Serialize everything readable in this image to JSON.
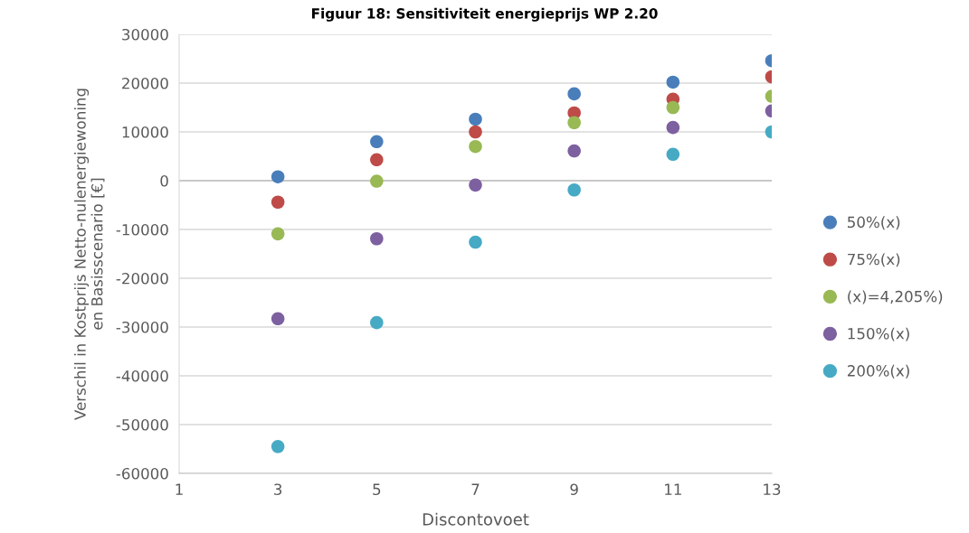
{
  "chart_data": {
    "type": "scatter",
    "title": "Figuur 18: Sensitiviteit energieprijs WP 2.20",
    "xlabel": "Discontovoet",
    "ylabel": "Verschil in Kostprijs Netto-nulenergiewoning\nen Basisscenario [€]",
    "x": [
      3,
      5,
      7,
      9,
      11,
      13
    ],
    "series": [
      {
        "name": "50%(x)",
        "color": "#4a7ebb",
        "values": [
          800,
          8000,
          12600,
          17800,
          20200,
          24600
        ]
      },
      {
        "name": "75%(x)",
        "color": "#be4b48",
        "values": [
          -4400,
          4300,
          10000,
          13900,
          16700,
          21300
        ]
      },
      {
        "name": "(x)=4,205%)",
        "color": "#98b954",
        "values": [
          -10900,
          -100,
          7000,
          11900,
          15000,
          17300
        ]
      },
      {
        "name": "150%(x)",
        "color": "#7d60a0",
        "values": [
          -28300,
          -11900,
          -900,
          6100,
          10900,
          14300
        ]
      },
      {
        "name": "200%(x)",
        "color": "#46aac5",
        "values": [
          -54500,
          -29100,
          -12600,
          -1900,
          5400,
          10000
        ]
      }
    ],
    "xlim": [
      1,
      13
    ],
    "xticks": [
      1,
      3,
      5,
      7,
      9,
      11,
      13
    ],
    "ylim": [
      -60000,
      30000
    ],
    "yticks": [
      -60000,
      -50000,
      -40000,
      -30000,
      -20000,
      -10000,
      0,
      10000,
      20000,
      30000
    ],
    "grid": "y",
    "legend": "right",
    "marker": "circle"
  }
}
